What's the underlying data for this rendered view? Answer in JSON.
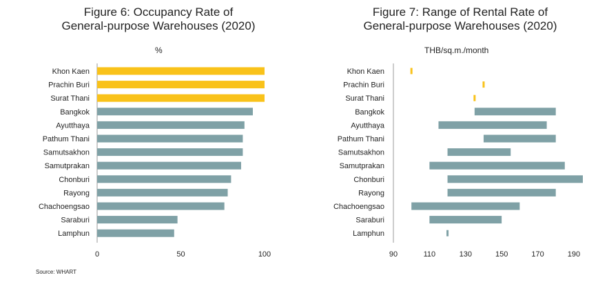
{
  "source": "Source:  WHART",
  "chart_data": [
    {
      "type": "bar",
      "orientation": "horizontal",
      "title_line1": "Figure 6: Occupancy Rate of",
      "title_line2": "General-purpose Warehouses (2020)",
      "unit": "%",
      "categories": [
        "Khon Kaen",
        "Prachin Buri",
        "Surat Thani",
        "Bangkok",
        "Ayutthaya",
        "Pathum Thani",
        "Samutsakhon",
        "Samutprakan",
        "Chonburi",
        "Rayong",
        "Chachoengsao",
        "Saraburi",
        "Lamphun"
      ],
      "values": [
        100,
        100,
        100,
        93,
        88,
        87,
        87,
        86,
        80,
        78,
        76,
        48,
        46
      ],
      "highlight": [
        true,
        true,
        true,
        false,
        false,
        false,
        false,
        false,
        false,
        false,
        false,
        false,
        false
      ],
      "xlim": [
        0,
        100
      ],
      "xticks": [
        0,
        50,
        100
      ],
      "colors": {
        "highlight": "#F9C21A",
        "default": "#7FA1A6"
      }
    },
    {
      "type": "range-bar",
      "orientation": "horizontal",
      "title_line1": "Figure 7: Range of Rental Rate of",
      "title_line2": "General-purpose Warehouses (2020)",
      "unit": "THB/sq.m./month",
      "categories": [
        "Khon Kaen",
        "Prachin Buri",
        "Surat Thani",
        "Bangkok",
        "Ayutthaya",
        "Pathum Thani",
        "Samutsakhon",
        "Samutprakan",
        "Chonburi",
        "Rayong",
        "Chachoengsao",
        "Saraburi",
        "Lamphun"
      ],
      "ranges": [
        [
          100,
          100
        ],
        [
          140,
          140
        ],
        [
          135,
          135
        ],
        [
          135,
          180
        ],
        [
          115,
          175
        ],
        [
          140,
          180
        ],
        [
          120,
          155
        ],
        [
          110,
          185
        ],
        [
          120,
          195
        ],
        [
          120,
          180
        ],
        [
          100,
          160
        ],
        [
          110,
          150
        ],
        [
          120,
          120
        ]
      ],
      "highlight": [
        true,
        true,
        true,
        false,
        false,
        false,
        false,
        false,
        false,
        false,
        false,
        false,
        false
      ],
      "xlim": [
        90,
        195
      ],
      "xticks": [
        90,
        110,
        130,
        150,
        170,
        190
      ],
      "colors": {
        "highlight": "#F9C21A",
        "default": "#7FA1A6"
      }
    }
  ]
}
